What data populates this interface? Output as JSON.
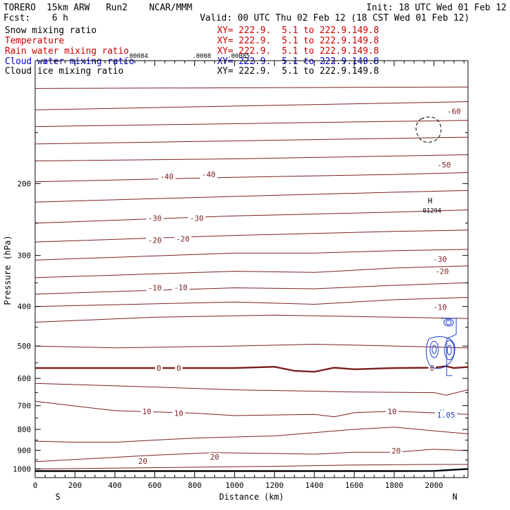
{
  "header": {
    "model": "TORERO  15km ARW   Run2    NCAR/MMM",
    "init": "Init: 18 UTC Wed 01 Feb 12",
    "fcst": "Fcst:    6 h",
    "valid": "Valid: 00 UTC Thu 02 Feb 12 (18 CST Wed 01 Feb 12)",
    "fields": [
      {
        "label": "Snow mixing ratio",
        "xy": "XY= 222.9.  5.1 to 222.9.149.8",
        "color": "#000000"
      },
      {
        "label": "Temperature",
        "xy": "XY= 222.9.  5.1 to 222.9.149.8",
        "color": "#cc0000"
      },
      {
        "label": "Rain water mixing ratio",
        "xy": "XY= 222.9.  5.1 to 222.9.149.8",
        "color": "#cc0000"
      },
      {
        "label": "Cloud water mixing ratio",
        "xy": "XY= 222.9.  5.1 to 222.9.149.8",
        "color": "#0000cc"
      },
      {
        "label": "Cloud ice mixing ratio",
        "xy": "XY= 222.9.  5.1 to 222.9.149.8",
        "color": "#000000"
      }
    ]
  },
  "chart_data": {
    "type": "line",
    "subtype": "cross-section contour",
    "xlabel": "Distance (km)",
    "ylabel": "Pressure (hPa)",
    "xlim": [
      0,
      2170
    ],
    "ylim": [
      1050,
      100
    ],
    "x_ticks": [
      0,
      200,
      400,
      600,
      800,
      1000,
      1200,
      1400,
      1600,
      1800,
      2000
    ],
    "y_ticks": [
      200,
      300,
      400,
      500,
      600,
      700,
      800,
      900,
      1000
    ],
    "y_scale": "log",
    "end_labels": {
      "left": "S",
      "right": "N"
    },
    "grid": false,
    "series": [
      {
        "x": [
          0,
          2170
        ],
        "y": [
          117,
          116
        ],
        "color": "#7a1f1f"
      },
      {
        "x": [
          0,
          2170
        ],
        "y": [
          132,
          126
        ],
        "color": "#7a1f1f"
      },
      {
        "x": [
          0,
          2170
        ],
        "y": [
          145,
          140
        ],
        "color": "#7a1f1f"
      },
      {
        "x": [
          0,
          2170
        ],
        "y": [
          160,
          154
        ],
        "color": "#7a1f1f"
      },
      {
        "x": [
          0,
          1000,
          2170
        ],
        "y": [
          176,
          174,
          170
        ],
        "color": "#7a1f1f"
      },
      {
        "x": [
          0,
          1000,
          1800,
          2170
        ],
        "y": [
          198,
          193,
          190,
          188
        ],
        "color": "#7a1f1f"
      },
      {
        "x": [
          0,
          1000,
          1800,
          2170
        ],
        "y": [
          222,
          215,
          210,
          208
        ],
        "color": "#7a1f1f"
      },
      {
        "x": [
          0,
          1000,
          1800,
          2170
        ],
        "y": [
          250,
          240,
          235,
          232
        ],
        "color": "#7a1f1f"
      },
      {
        "x": [
          0,
          1000,
          1800,
          2170
        ],
        "y": [
          278,
          268,
          262,
          260
        ],
        "color": "#7a1f1f"
      },
      {
        "x": [
          0,
          1000,
          1400,
          1800,
          2170
        ],
        "y": [
          308,
          296,
          296,
          292,
          290
        ],
        "color": "#7a1f1f"
      },
      {
        "x": [
          0,
          1000,
          1400,
          1800,
          2170
        ],
        "y": [
          340,
          328,
          330,
          322,
          318
        ],
        "color": "#7a1f1f"
      },
      {
        "x": [
          0,
          1000,
          1400,
          1800,
          2170
        ],
        "y": [
          373,
          360,
          362,
          355,
          350
        ],
        "color": "#7a1f1f"
      },
      {
        "x": [
          0,
          1000,
          1400,
          1800,
          2170
        ],
        "y": [
          400,
          390,
          395,
          385,
          380
        ],
        "color": "#7a1f1f"
      },
      {
        "x": [
          0,
          600,
          1200,
          1800,
          2170
        ],
        "y": [
          437,
          425,
          420,
          425,
          428
        ],
        "color": "#7a1f1f"
      },
      {
        "x": [
          0,
          400,
          1000,
          1400,
          1800,
          2170
        ],
        "y": [
          500,
          505,
          500,
          495,
          500,
          505
        ],
        "color": "#7a1f1f"
      },
      {
        "x": [
          0,
          600,
          1000,
          1200,
          1300,
          1400,
          1500,
          1600,
          1800,
          2000,
          2060,
          2100,
          2170
        ],
        "y": [
          566,
          566,
          566,
          562,
          575,
          578,
          565,
          570,
          566,
          565,
          560,
          566,
          563
        ],
        "color": "#7a1f1f"
      },
      {
        "x": [
          0,
          600,
          1000,
          1400,
          1600,
          2000,
          2060,
          2170
        ],
        "y": [
          617,
          630,
          640,
          645,
          648,
          650,
          660,
          640
        ],
        "color": "#7a1f1f"
      },
      {
        "x": [
          0,
          400,
          800,
          1000,
          1400,
          1500,
          1600,
          1800,
          2170
        ],
        "y": [
          683,
          720,
          730,
          740,
          735,
          745,
          728,
          722,
          735
        ],
        "color": "#7a1f1f"
      },
      {
        "x": [
          0,
          200,
          400,
          800,
          1200,
          1600,
          1800,
          2100,
          2170
        ],
        "y": [
          855,
          860,
          860,
          840,
          830,
          800,
          790,
          815,
          820
        ],
        "color": "#7a1f1f"
      },
      {
        "x": [
          0,
          600,
          900,
          1400,
          1600,
          1800,
          2000,
          2170
        ],
        "y": [
          960,
          925,
          912,
          920,
          910,
          910,
          895,
          902
        ],
        "color": "#7a1f1f"
      },
      {
        "x": [
          0,
          400,
          800,
          1200,
          1600,
          2000,
          2170
        ],
        "y": [
          1000,
          995,
          990,
          985,
          978,
          975,
          975
        ],
        "color": "#7a1f1f"
      },
      {
        "x": [
          0,
          1000,
          1800,
          2000,
          2170
        ],
        "y": [
          1012,
          1012,
          1012,
          1011,
          1000
        ],
        "color": "#000000"
      }
    ],
    "annotations": [
      {
        "text": "-60",
        "x": 2100,
        "y": 133
      },
      {
        "text": "-50",
        "x": 2050,
        "y": 180
      },
      {
        "text": "-40",
        "x": 660,
        "y": 192
      },
      {
        "text": "-40",
        "x": 870,
        "y": 190
      },
      {
        "text": "-30",
        "x": 600,
        "y": 243
      },
      {
        "text": "-30",
        "x": 810,
        "y": 243
      },
      {
        "text": "-30",
        "x": 2030,
        "y": 306
      },
      {
        "text": "-20",
        "x": 600,
        "y": 275
      },
      {
        "text": "-20",
        "x": 740,
        "y": 273
      },
      {
        "text": "-20",
        "x": 2040,
        "y": 328
      },
      {
        "text": "-10",
        "x": 600,
        "y": 360
      },
      {
        "text": "-10",
        "x": 730,
        "y": 359
      },
      {
        "text": "-10",
        "x": 2030,
        "y": 401
      },
      {
        "text": "0",
        "x": 620,
        "y": 566
      },
      {
        "text": "0",
        "x": 720,
        "y": 566
      },
      {
        "text": "0",
        "x": 1990,
        "y": 566
      },
      {
        "text": "10",
        "x": 560,
        "y": 723
      },
      {
        "text": "10",
        "x": 720,
        "y": 730
      },
      {
        "text": "10",
        "x": 1790,
        "y": 723
      },
      {
        "text": "20",
        "x": 540,
        "y": 957
      },
      {
        "text": "20",
        "x": 900,
        "y": 935
      },
      {
        "text": "20",
        "x": 1810,
        "y": 902
      },
      {
        "text": ".00084",
        "x": 510,
        "y": 97
      },
      {
        "text": ".0008",
        "x": 835,
        "y": 97
      },
      {
        "text": ".00085",
        "x": 1020,
        "y": 97
      },
      {
        "text": "H",
        "x": 1980,
        "y": 220
      },
      {
        "text": "01294",
        "x": 1990,
        "y": 232
      },
      {
        "text": "H",
        "x": 2040,
        "y": 727
      },
      {
        "text": "1.05",
        "x": 2060,
        "y": 737
      }
    ]
  }
}
